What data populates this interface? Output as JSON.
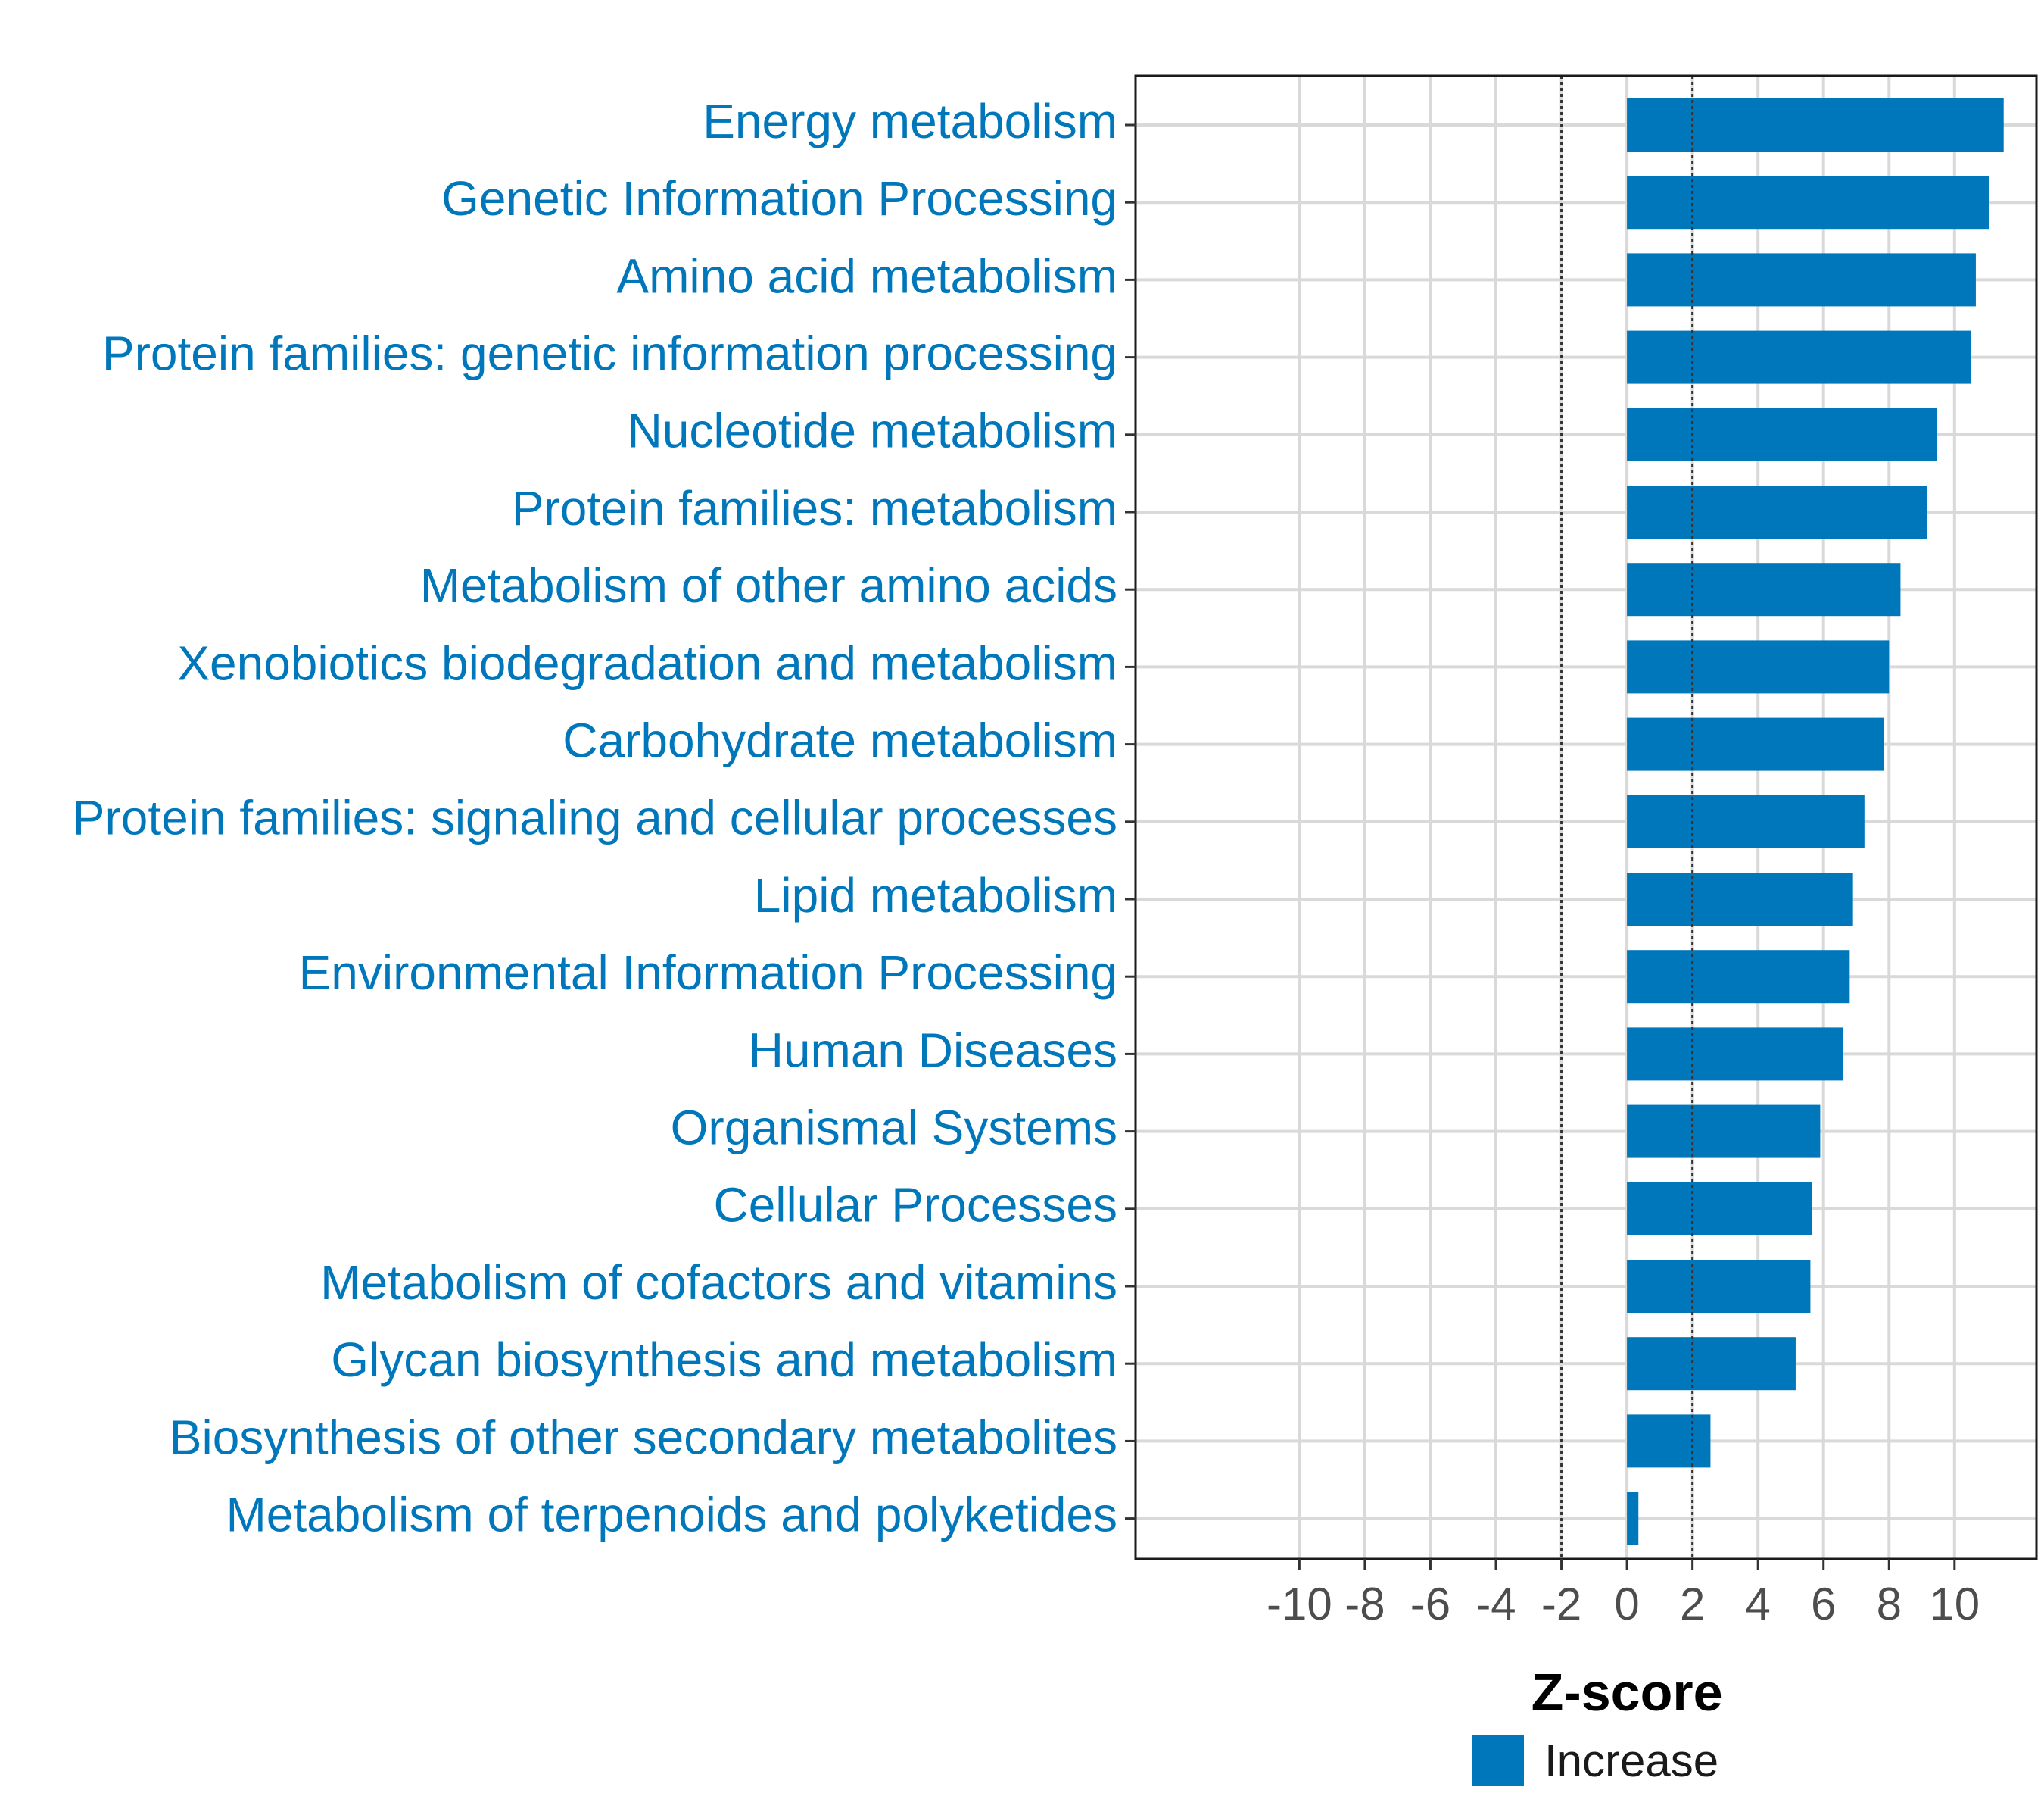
{
  "chart_data": {
    "type": "bar",
    "orientation": "horizontal",
    "title": "",
    "xlabel": "Z-score",
    "ylabel": "",
    "xlim": [
      -15,
      12.5
    ],
    "xticks": [
      -10,
      -8,
      -6,
      -4,
      -2,
      0,
      2,
      4,
      6,
      8,
      10
    ],
    "xtick_labels": [
      "-10",
      "-8",
      "-6",
      "-4",
      "-2",
      "0",
      "2",
      "4",
      "6",
      "8",
      "10"
    ],
    "threshold_lines": [
      -2,
      2
    ],
    "grid": true,
    "categories": [
      "Energy metabolism",
      "Genetic Information Processing",
      "Amino acid metabolism",
      "Protein families: genetic information processing",
      "Nucleotide metabolism",
      "Protein families: metabolism",
      "Metabolism of other amino acids",
      "Xenobiotics biodegradation and metabolism",
      "Carbohydrate metabolism",
      "Protein families: signaling and cellular processes",
      "Lipid metabolism",
      "Environmental Information Processing",
      "Human Diseases",
      "Organismal Systems",
      "Cellular Processes",
      "Metabolism of cofactors and vitamins",
      "Glycan biosynthesis and metabolism",
      "Biosynthesis of other secondary metabolites",
      "Metabolism of terpenoids and polyketides"
    ],
    "series": [
      {
        "name": "Increase",
        "color": "#0077bb",
        "values": [
          11.5,
          11.05,
          10.65,
          10.5,
          9.45,
          9.15,
          8.35,
          8.0,
          7.85,
          7.25,
          6.9,
          6.8,
          6.6,
          5.9,
          5.65,
          5.6,
          5.15,
          2.55,
          0.35
        ]
      }
    ],
    "label_color": "#0077bb",
    "legend": {
      "position": "bottom",
      "entries": [
        "Increase"
      ]
    }
  }
}
